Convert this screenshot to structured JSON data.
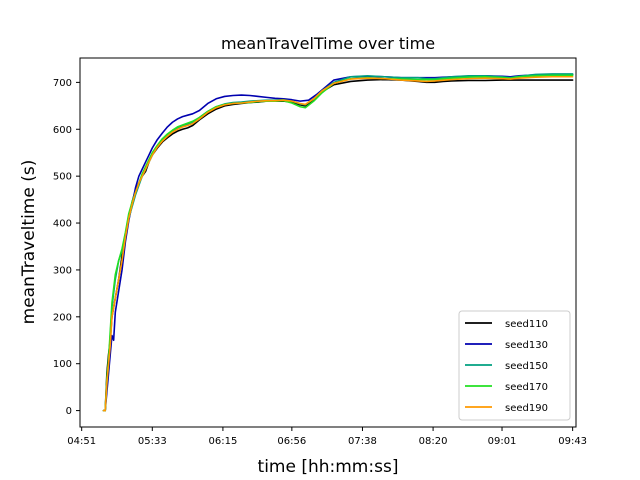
{
  "chart_data": {
    "type": "line",
    "title": "meanTravelTime over time",
    "xlabel": "time [hh:mm:ss]",
    "ylabel": "meanTraveltime (s)",
    "x_unit": "minutes_since_04:51",
    "xlim": [
      -1,
      294
    ],
    "ylim": [
      -35,
      752
    ],
    "x_ticks": [
      {
        "value": 0,
        "label": "04:51"
      },
      {
        "value": 42,
        "label": "05:33"
      },
      {
        "value": 84,
        "label": "06:15"
      },
      {
        "value": 125,
        "label": "06:56"
      },
      {
        "value": 167,
        "label": "07:38"
      },
      {
        "value": 209,
        "label": "08:20"
      },
      {
        "value": 250,
        "label": "09:01"
      },
      {
        "value": 292,
        "label": "09:43"
      }
    ],
    "y_ticks": [
      0,
      100,
      200,
      300,
      400,
      500,
      600,
      700
    ],
    "grid": false,
    "legend_position": "bottom-right",
    "series": [
      {
        "name": "seed110",
        "color": "#000000",
        "points": [
          [
            13,
            0
          ],
          [
            14,
            0
          ],
          [
            15,
            80
          ],
          [
            16,
            120
          ],
          [
            17,
            150
          ],
          [
            18,
            200
          ],
          [
            20,
            240
          ],
          [
            22,
            280
          ],
          [
            24,
            330
          ],
          [
            26,
            370
          ],
          [
            28,
            410
          ],
          [
            30,
            445
          ],
          [
            32,
            470
          ],
          [
            34,
            485
          ],
          [
            36,
            500
          ],
          [
            38,
            510
          ],
          [
            40,
            530
          ],
          [
            42,
            545
          ],
          [
            45,
            560
          ],
          [
            48,
            573
          ],
          [
            51,
            582
          ],
          [
            54,
            590
          ],
          [
            57,
            596
          ],
          [
            60,
            600
          ],
          [
            63,
            603
          ],
          [
            66,
            608
          ],
          [
            70,
            620
          ],
          [
            75,
            633
          ],
          [
            80,
            643
          ],
          [
            85,
            650
          ],
          [
            90,
            653
          ],
          [
            95,
            655
          ],
          [
            100,
            657
          ],
          [
            105,
            658
          ],
          [
            110,
            660
          ],
          [
            115,
            660
          ],
          [
            120,
            660
          ],
          [
            125,
            658
          ],
          [
            130,
            652
          ],
          [
            133,
            650
          ],
          [
            138,
            662
          ],
          [
            143,
            680
          ],
          [
            150,
            695
          ],
          [
            160,
            702
          ],
          [
            170,
            705
          ],
          [
            180,
            706
          ],
          [
            190,
            705
          ],
          [
            200,
            702
          ],
          [
            205,
            700
          ],
          [
            210,
            700
          ],
          [
            215,
            702
          ],
          [
            220,
            703
          ],
          [
            230,
            704
          ],
          [
            240,
            704
          ],
          [
            250,
            705
          ],
          [
            260,
            705
          ],
          [
            270,
            705
          ],
          [
            280,
            705
          ],
          [
            292,
            705
          ]
        ]
      },
      {
        "name": "seed130",
        "color": "#0000b0",
        "points": [
          [
            13,
            0
          ],
          [
            14,
            0
          ],
          [
            15,
            40
          ],
          [
            16,
            80
          ],
          [
            17,
            120
          ],
          [
            18,
            160
          ],
          [
            19,
            150
          ],
          [
            20,
            210
          ],
          [
            22,
            255
          ],
          [
            24,
            300
          ],
          [
            26,
            360
          ],
          [
            28,
            405
          ],
          [
            30,
            440
          ],
          [
            32,
            475
          ],
          [
            34,
            500
          ],
          [
            36,
            515
          ],
          [
            38,
            530
          ],
          [
            40,
            545
          ],
          [
            42,
            560
          ],
          [
            45,
            578
          ],
          [
            48,
            592
          ],
          [
            51,
            605
          ],
          [
            54,
            615
          ],
          [
            57,
            622
          ],
          [
            60,
            627
          ],
          [
            63,
            630
          ],
          [
            66,
            633
          ],
          [
            70,
            640
          ],
          [
            75,
            655
          ],
          [
            80,
            665
          ],
          [
            85,
            670
          ],
          [
            90,
            672
          ],
          [
            95,
            673
          ],
          [
            100,
            672
          ],
          [
            105,
            670
          ],
          [
            110,
            668
          ],
          [
            115,
            666
          ],
          [
            120,
            665
          ],
          [
            125,
            663
          ],
          [
            130,
            660
          ],
          [
            135,
            662
          ],
          [
            140,
            675
          ],
          [
            145,
            690
          ],
          [
            150,
            705
          ],
          [
            160,
            712
          ],
          [
            170,
            713
          ],
          [
            180,
            712
          ],
          [
            190,
            710
          ],
          [
            200,
            710
          ],
          [
            210,
            710
          ],
          [
            220,
            712
          ],
          [
            230,
            713
          ],
          [
            240,
            714
          ],
          [
            250,
            713
          ],
          [
            255,
            712
          ],
          [
            260,
            714
          ],
          [
            270,
            716
          ],
          [
            280,
            717
          ],
          [
            292,
            717
          ]
        ]
      },
      {
        "name": "seed150",
        "color": "#00a080",
        "points": [
          [
            13,
            0
          ],
          [
            14,
            0
          ],
          [
            15,
            60
          ],
          [
            16,
            100
          ],
          [
            17,
            160
          ],
          [
            18,
            220
          ],
          [
            20,
            280
          ],
          [
            22,
            320
          ],
          [
            24,
            340
          ],
          [
            26,
            375
          ],
          [
            28,
            410
          ],
          [
            30,
            435
          ],
          [
            32,
            460
          ],
          [
            34,
            480
          ],
          [
            36,
            500
          ],
          [
            38,
            515
          ],
          [
            40,
            530
          ],
          [
            42,
            545
          ],
          [
            45,
            565
          ],
          [
            48,
            578
          ],
          [
            51,
            588
          ],
          [
            54,
            597
          ],
          [
            57,
            603
          ],
          [
            60,
            607
          ],
          [
            63,
            611
          ],
          [
            66,
            615
          ],
          [
            70,
            625
          ],
          [
            75,
            638
          ],
          [
            80,
            648
          ],
          [
            85,
            654
          ],
          [
            90,
            657
          ],
          [
            95,
            658
          ],
          [
            100,
            660
          ],
          [
            105,
            661
          ],
          [
            110,
            662
          ],
          [
            115,
            662
          ],
          [
            120,
            663
          ],
          [
            125,
            660
          ],
          [
            130,
            654
          ],
          [
            133,
            652
          ],
          [
            138,
            665
          ],
          [
            143,
            682
          ],
          [
            150,
            700
          ],
          [
            160,
            712
          ],
          [
            170,
            714
          ],
          [
            180,
            712
          ],
          [
            190,
            710
          ],
          [
            200,
            710
          ],
          [
            205,
            708
          ],
          [
            210,
            708
          ],
          [
            220,
            712
          ],
          [
            230,
            714
          ],
          [
            240,
            714
          ],
          [
            250,
            712
          ],
          [
            255,
            710
          ],
          [
            260,
            713
          ],
          [
            270,
            717
          ],
          [
            280,
            718
          ],
          [
            292,
            718
          ]
        ]
      },
      {
        "name": "seed170",
        "color": "#22e022",
        "points": [
          [
            13,
            0
          ],
          [
            14,
            0
          ],
          [
            15,
            70
          ],
          [
            16,
            110
          ],
          [
            17,
            170
          ],
          [
            18,
            230
          ],
          [
            20,
            290
          ],
          [
            22,
            320
          ],
          [
            24,
            345
          ],
          [
            26,
            380
          ],
          [
            28,
            420
          ],
          [
            30,
            445
          ],
          [
            32,
            465
          ],
          [
            34,
            485
          ],
          [
            36,
            505
          ],
          [
            38,
            520
          ],
          [
            40,
            535
          ],
          [
            42,
            550
          ],
          [
            45,
            566
          ],
          [
            48,
            580
          ],
          [
            51,
            590
          ],
          [
            54,
            598
          ],
          [
            57,
            605
          ],
          [
            60,
            609
          ],
          [
            63,
            613
          ],
          [
            66,
            617
          ],
          [
            70,
            625
          ],
          [
            75,
            638
          ],
          [
            80,
            648
          ],
          [
            85,
            653
          ],
          [
            90,
            655
          ],
          [
            95,
            656
          ],
          [
            100,
            657
          ],
          [
            105,
            659
          ],
          [
            110,
            660
          ],
          [
            115,
            660
          ],
          [
            120,
            661
          ],
          [
            125,
            656
          ],
          [
            130,
            648
          ],
          [
            133,
            646
          ],
          [
            138,
            660
          ],
          [
            143,
            678
          ],
          [
            150,
            698
          ],
          [
            160,
            708
          ],
          [
            170,
            710
          ],
          [
            180,
            708
          ],
          [
            190,
            707
          ],
          [
            200,
            706
          ],
          [
            210,
            706
          ],
          [
            220,
            709
          ],
          [
            230,
            711
          ],
          [
            240,
            712
          ],
          [
            250,
            710
          ],
          [
            255,
            709
          ],
          [
            260,
            712
          ],
          [
            270,
            714
          ],
          [
            280,
            715
          ],
          [
            292,
            715
          ]
        ]
      },
      {
        "name": "seed190",
        "color": "#ff9900",
        "points": [
          [
            13,
            0
          ],
          [
            14,
            0
          ],
          [
            15,
            60
          ],
          [
            16,
            100
          ],
          [
            17,
            140
          ],
          [
            18,
            200
          ],
          [
            20,
            240
          ],
          [
            22,
            280
          ],
          [
            24,
            320
          ],
          [
            26,
            370
          ],
          [
            28,
            410
          ],
          [
            30,
            440
          ],
          [
            32,
            465
          ],
          [
            34,
            485
          ],
          [
            36,
            500
          ],
          [
            38,
            515
          ],
          [
            40,
            530
          ],
          [
            42,
            545
          ],
          [
            45,
            562
          ],
          [
            48,
            575
          ],
          [
            51,
            585
          ],
          [
            54,
            594
          ],
          [
            57,
            600
          ],
          [
            60,
            605
          ],
          [
            63,
            608
          ],
          [
            66,
            612
          ],
          [
            70,
            622
          ],
          [
            75,
            636
          ],
          [
            80,
            646
          ],
          [
            85,
            652
          ],
          [
            90,
            655
          ],
          [
            95,
            656
          ],
          [
            100,
            658
          ],
          [
            105,
            660
          ],
          [
            110,
            661
          ],
          [
            115,
            661
          ],
          [
            120,
            662
          ],
          [
            125,
            660
          ],
          [
            130,
            655
          ],
          [
            133,
            653
          ],
          [
            138,
            665
          ],
          [
            143,
            682
          ],
          [
            150,
            698
          ],
          [
            160,
            707
          ],
          [
            170,
            709
          ],
          [
            180,
            708
          ],
          [
            190,
            705
          ],
          [
            200,
            703
          ],
          [
            205,
            702
          ],
          [
            210,
            703
          ],
          [
            220,
            706
          ],
          [
            230,
            708
          ],
          [
            240,
            709
          ],
          [
            250,
            708
          ],
          [
            255,
            707
          ],
          [
            260,
            709
          ],
          [
            270,
            711
          ],
          [
            280,
            712
          ],
          [
            292,
            712
          ]
        ]
      }
    ]
  }
}
